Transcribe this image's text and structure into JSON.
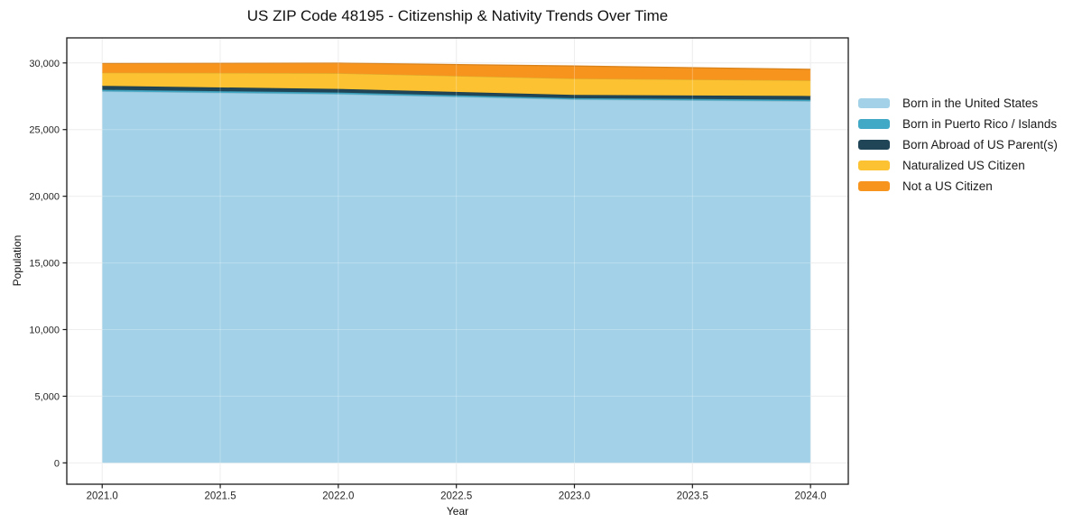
{
  "chart_data": {
    "type": "area",
    "stacked": true,
    "title": "US ZIP Code 48195 - Citizenship & Nativity Trends Over Time",
    "xlabel": "Year",
    "ylabel": "Population",
    "x": [
      2021,
      2022,
      2023,
      2024
    ],
    "series": [
      {
        "name": "Born in the United States",
        "color": "#a3d2e8",
        "values": [
          27870,
          27660,
          27260,
          27130
        ]
      },
      {
        "name": "Born in Puerto Rico / Islands",
        "color": "#41a9c6",
        "values": [
          120,
          120,
          100,
          110
        ]
      },
      {
        "name": "Born Abroad of US Parent(s)",
        "color": "#1f4557",
        "values": [
          290,
          270,
          240,
          280
        ]
      },
      {
        "name": "Naturalized US Citizen",
        "color": "#fcc232",
        "values": [
          990,
          1180,
          1230,
          1170
        ]
      },
      {
        "name": "Not a US Citizen",
        "color": "#f7941e",
        "values": [
          690,
          760,
          940,
          830
        ]
      }
    ],
    "xticks": [
      2021.0,
      2021.5,
      2022.0,
      2022.5,
      2023.0,
      2023.5,
      2024.0
    ],
    "yticks": [
      0,
      5000,
      10000,
      15000,
      20000,
      25000,
      30000
    ],
    "xlim": [
      2020.85,
      2024.16
    ],
    "ylim": [
      -1600,
      31880
    ],
    "grid": true,
    "grid_color": "#e8e8e8",
    "frame_color": "#1a1a1a",
    "legend_position": "right"
  }
}
